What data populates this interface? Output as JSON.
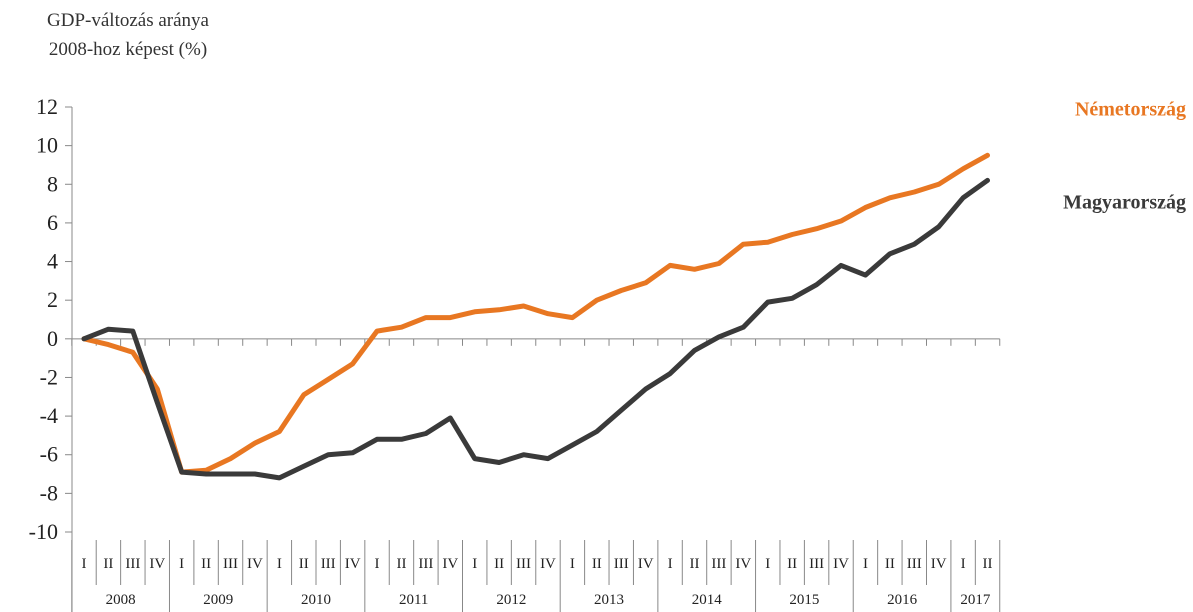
{
  "chart_data": {
    "type": "line",
    "title": "",
    "ylabel_lines": [
      "GDP-változás aránya",
      "2008-hoz képest (%)"
    ],
    "xlabel": "",
    "ylim": [
      -10,
      12
    ],
    "yticks": [
      12,
      10,
      8,
      6,
      4,
      2,
      0,
      -2,
      -4,
      -6,
      -8,
      -10
    ],
    "grid": false,
    "years": [
      "2008",
      "2009",
      "2010",
      "2011",
      "2012",
      "2013",
      "2014",
      "2015",
      "2016",
      "2017"
    ],
    "quarter_labels": [
      "I",
      "II",
      "III",
      "IV"
    ],
    "quarters_per_year": [
      4,
      4,
      4,
      4,
      4,
      4,
      4,
      4,
      4,
      2
    ],
    "series": [
      {
        "name": "Németország",
        "color": "#E87722",
        "values": [
          0,
          -0.3,
          -0.7,
          -2.6,
          -6.9,
          -6.8,
          -6.2,
          -5.4,
          -4.8,
          -2.9,
          -2.1,
          -1.3,
          0.4,
          0.6,
          1.1,
          1.1,
          1.4,
          1.5,
          1.7,
          1.3,
          1.1,
          2.0,
          2.5,
          2.9,
          3.8,
          3.6,
          3.9,
          4.9,
          5.0,
          5.4,
          5.7,
          6.1,
          6.8,
          7.3,
          7.6,
          8.0,
          8.8,
          9.5
        ]
      },
      {
        "name": "Magyarország",
        "color": "#3A3A3A",
        "values": [
          0,
          0.5,
          0.4,
          -3.3,
          -6.9,
          -7.0,
          -7.0,
          -7.0,
          -7.2,
          -6.6,
          -6.0,
          -5.9,
          -5.2,
          -5.2,
          -4.9,
          -4.1,
          -6.2,
          -6.4,
          -6.0,
          -6.2,
          -5.5,
          -4.8,
          -3.7,
          -2.6,
          -1.8,
          -0.6,
          0.1,
          0.6,
          1.9,
          2.1,
          2.8,
          3.8,
          3.3,
          4.4,
          4.9,
          5.8,
          7.3,
          8.2
        ]
      }
    ]
  }
}
